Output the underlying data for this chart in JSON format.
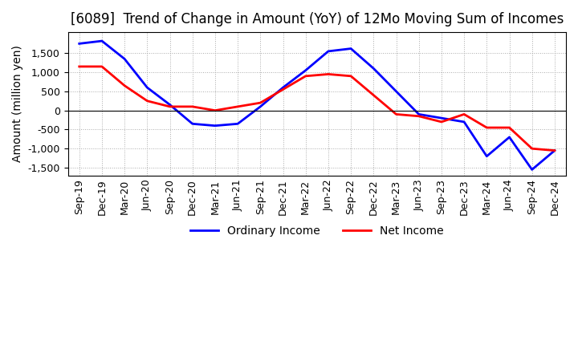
{
  "title": "[6089]  Trend of Change in Amount (YoY) of 12Mo Moving Sum of Incomes",
  "ylabel": "Amount (million yen)",
  "ylim": [
    -1700,
    2050
  ],
  "yticks": [
    -1500,
    -1000,
    -500,
    0,
    500,
    1000,
    1500
  ],
  "x_labels": [
    "Sep-19",
    "Dec-19",
    "Mar-20",
    "Jun-20",
    "Sep-20",
    "Dec-20",
    "Mar-21",
    "Jun-21",
    "Sep-21",
    "Dec-21",
    "Mar-22",
    "Jun-22",
    "Sep-22",
    "Dec-22",
    "Mar-23",
    "Jun-23",
    "Sep-23",
    "Dec-23",
    "Mar-24",
    "Jun-24",
    "Sep-24",
    "Dec-24"
  ],
  "ordinary_income": [
    1750,
    1820,
    1350,
    600,
    150,
    -350,
    -400,
    -350,
    100,
    600,
    1050,
    1550,
    1620,
    1100,
    500,
    -100,
    -200,
    -300,
    -1200,
    -700,
    -1550,
    -1050
  ],
  "net_income": [
    1150,
    1150,
    650,
    250,
    100,
    100,
    0,
    100,
    200,
    550,
    900,
    950,
    900,
    400,
    -100,
    -150,
    -300,
    -100,
    -450,
    -450,
    -1000,
    -1050
  ],
  "ordinary_color": "#0000ff",
  "net_color": "#ff0000",
  "background_color": "#ffffff",
  "grid_color": "#aaaaaa",
  "title_fontsize": 12,
  "label_fontsize": 10,
  "tick_fontsize": 9
}
